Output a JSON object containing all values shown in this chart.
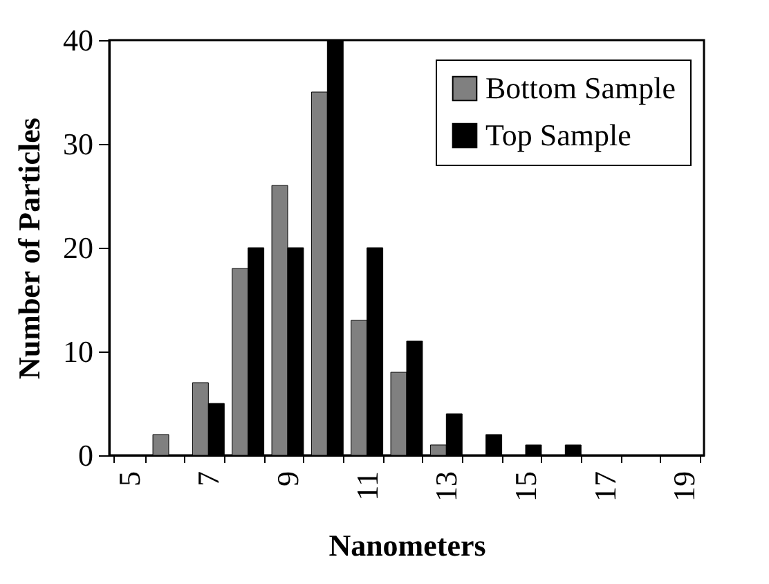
{
  "chart_data": {
    "type": "bar",
    "xlabel": "Nanometers",
    "ylabel": "Number of Particles",
    "categories": [
      "5",
      null,
      "7",
      null,
      "9",
      null,
      "11",
      null,
      "13",
      null,
      "15",
      null,
      "17",
      null,
      "19"
    ],
    "series": [
      {
        "name": "Bottom Sample",
        "color": "#808080",
        "values": [
          null,
          2,
          7,
          18,
          26,
          35,
          13,
          8,
          1,
          null,
          null,
          null,
          null,
          null,
          null
        ]
      },
      {
        "name": "Top Sample",
        "color": "#000000",
        "values": [
          null,
          null,
          5,
          20,
          20,
          40,
          20,
          11,
          4,
          2,
          1,
          1,
          null,
          null,
          null
        ]
      }
    ],
    "ylim": [
      0,
      40
    ],
    "yticks": [
      0,
      10,
      20,
      30,
      40
    ],
    "grid": false,
    "legend": "top right"
  }
}
